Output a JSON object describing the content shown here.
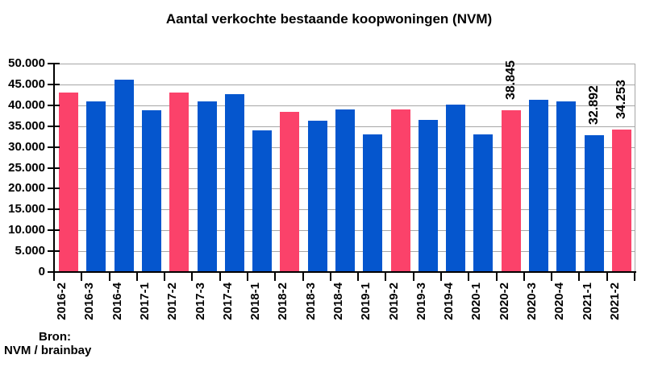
{
  "chart_data": {
    "type": "bar",
    "title": "Aantal verkochte bestaande koopwoningen (NVM)",
    "categories": [
      "2016-2",
      "2016-3",
      "2016-4",
      "2017-1",
      "2017-2",
      "2017-3",
      "2017-4",
      "2018-1",
      "2018-2",
      "2018-3",
      "2018-4",
      "2019-1",
      "2019-2",
      "2019-3",
      "2019-4",
      "2020-1",
      "2020-2",
      "2020-3",
      "2020-4",
      "2021-1",
      "2021-2"
    ],
    "values": [
      43000,
      40900,
      46100,
      38800,
      43100,
      40900,
      42700,
      33900,
      38400,
      36300,
      39000,
      33000,
      39000,
      36500,
      40200,
      33000,
      38845,
      41300,
      40900,
      32892,
      34253
    ],
    "bar_colors": [
      "pink",
      "blue",
      "blue",
      "blue",
      "pink",
      "blue",
      "blue",
      "blue",
      "pink",
      "blue",
      "blue",
      "blue",
      "pink",
      "blue",
      "blue",
      "blue",
      "pink",
      "blue",
      "blue",
      "blue",
      "pink"
    ],
    "colors": {
      "blue": "#0556CE",
      "pink": "#FB426A",
      "gridline": "#A6A6A6",
      "axis": "#000000",
      "text": "#000000"
    },
    "ylim": [
      0,
      50000
    ],
    "ytick_step": 5000,
    "ytick_labels": [
      "50.000",
      "45.000",
      "40.000",
      "35.000",
      "30.000",
      "25.000",
      "20.000",
      "15.000",
      "10.000",
      "5.000",
      "0"
    ],
    "annotations": [
      {
        "index": 16,
        "text": "38.845"
      },
      {
        "index": 19,
        "text": "32.892"
      },
      {
        "index": 20,
        "text": "34.253"
      }
    ],
    "grid": true,
    "legend": false,
    "xlabel": "",
    "ylabel": ""
  },
  "source": {
    "line1": "Bron:",
    "line2": "NVM / brainbay"
  }
}
